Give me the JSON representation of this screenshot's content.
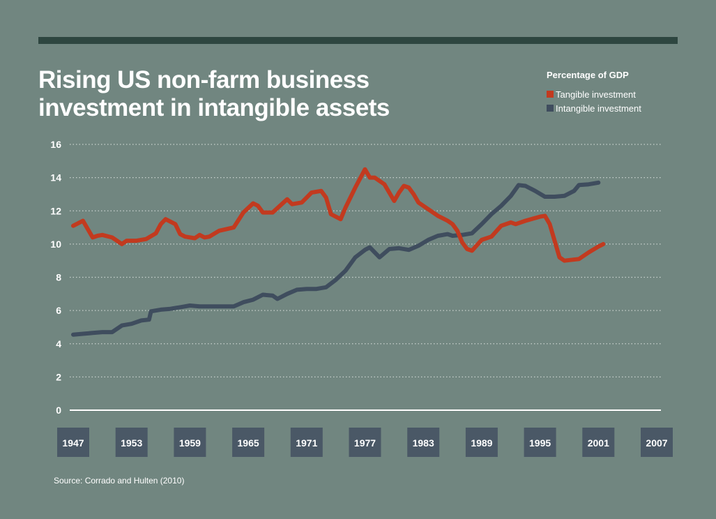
{
  "title": {
    "line1": "Rising US non-farm business",
    "line2": "investment in intangible assets"
  },
  "legend": {
    "title": "Percentage of GDP",
    "items": [
      {
        "label": "Tangible investment",
        "color": "#c23a1f"
      },
      {
        "label": "Intangible investment",
        "color": "#3f4d5e"
      }
    ]
  },
  "source": "Source: Corrado and Hulten (2010)",
  "colors": {
    "background": "#718680",
    "top_bar": "#2e4640",
    "year_box": "#4a5866",
    "grid": "#c9d2ce"
  },
  "chart_data": {
    "type": "line",
    "title": "Rising US non-farm business investment in intangible assets",
    "ylabel": "Percentage of GDP",
    "xlabel": "",
    "xlim": [
      1947,
      2007
    ],
    "ylim": [
      0,
      16
    ],
    "yticks": [
      0,
      2,
      4,
      6,
      8,
      10,
      12,
      14,
      16
    ],
    "xticks": [
      1947,
      1953,
      1959,
      1965,
      1971,
      1977,
      1983,
      1989,
      1995,
      2001,
      2007
    ],
    "grid": "horizontal dotted",
    "legend_position": "top-right",
    "series": [
      {
        "name": "Tangible investment",
        "color": "#c23a1f",
        "points": [
          [
            1947,
            11.1
          ],
          [
            1948,
            11.4
          ],
          [
            1948.5,
            10.9
          ],
          [
            1949,
            10.4
          ],
          [
            1949.5,
            10.5
          ],
          [
            1950,
            10.55
          ],
          [
            1951,
            10.4
          ],
          [
            1952,
            10.0
          ],
          [
            1952.5,
            10.2
          ],
          [
            1953.5,
            10.2
          ],
          [
            1954.5,
            10.3
          ],
          [
            1955.5,
            10.65
          ],
          [
            1956,
            11.2
          ],
          [
            1956.5,
            11.5
          ],
          [
            1957.5,
            11.2
          ],
          [
            1958,
            10.6
          ],
          [
            1958.5,
            10.45
          ],
          [
            1959.5,
            10.35
          ],
          [
            1960,
            10.55
          ],
          [
            1960.5,
            10.4
          ],
          [
            1961,
            10.45
          ],
          [
            1962,
            10.8
          ],
          [
            1963.5,
            11.0
          ],
          [
            1964.5,
            11.9
          ],
          [
            1965.5,
            12.45
          ],
          [
            1966,
            12.3
          ],
          [
            1966.5,
            11.9
          ],
          [
            1967.5,
            11.9
          ],
          [
            1969,
            12.7
          ],
          [
            1969.5,
            12.4
          ],
          [
            1970.5,
            12.5
          ],
          [
            1971.5,
            13.1
          ],
          [
            1972.5,
            13.2
          ],
          [
            1973,
            12.8
          ],
          [
            1973.5,
            11.8
          ],
          [
            1974.5,
            11.5
          ],
          [
            1975,
            12.2
          ],
          [
            1976,
            13.4
          ],
          [
            1977,
            14.5
          ],
          [
            1977.5,
            14.0
          ],
          [
            1978,
            14.0
          ],
          [
            1979,
            13.6
          ],
          [
            1979.5,
            13.1
          ],
          [
            1980,
            12.6
          ],
          [
            1980.5,
            13.1
          ],
          [
            1981,
            13.5
          ],
          [
            1981.5,
            13.4
          ],
          [
            1982,
            13.0
          ],
          [
            1982.5,
            12.5
          ],
          [
            1983.5,
            12.1
          ],
          [
            1984.5,
            11.7
          ],
          [
            1985.5,
            11.4
          ],
          [
            1986,
            11.2
          ],
          [
            1986.5,
            10.8
          ],
          [
            1987,
            10.1
          ],
          [
            1987.5,
            9.7
          ],
          [
            1988,
            9.6
          ],
          [
            1989,
            10.25
          ],
          [
            1990,
            10.45
          ],
          [
            1991,
            11.1
          ],
          [
            1992,
            11.3
          ],
          [
            1992.5,
            11.2
          ],
          [
            1993.5,
            11.4
          ],
          [
            1995,
            11.65
          ],
          [
            1995.5,
            11.7
          ],
          [
            1996,
            11.2
          ],
          [
            1996.5,
            10.2
          ],
          [
            1997,
            9.2
          ],
          [
            1997.5,
            9.0
          ],
          [
            1999,
            9.1
          ],
          [
            2000,
            9.5
          ],
          [
            2001,
            9.85
          ],
          [
            2001.5,
            10.0
          ]
        ]
      },
      {
        "name": "Intangible investment",
        "color": "#3f4d5e",
        "points": [
          [
            1947,
            4.55
          ],
          [
            1948,
            4.6
          ],
          [
            1949,
            4.65
          ],
          [
            1950,
            4.7
          ],
          [
            1951,
            4.7
          ],
          [
            1952,
            5.1
          ],
          [
            1953,
            5.2
          ],
          [
            1954,
            5.4
          ],
          [
            1954.8,
            5.45
          ],
          [
            1955,
            5.95
          ],
          [
            1956,
            6.05
          ],
          [
            1957,
            6.1
          ],
          [
            1958,
            6.2
          ],
          [
            1959,
            6.3
          ],
          [
            1960,
            6.25
          ],
          [
            1961,
            6.25
          ],
          [
            1962,
            6.25
          ],
          [
            1963,
            6.25
          ],
          [
            1963.5,
            6.25
          ],
          [
            1964.5,
            6.5
          ],
          [
            1965.5,
            6.65
          ],
          [
            1966.5,
            6.95
          ],
          [
            1967.5,
            6.9
          ],
          [
            1968,
            6.7
          ],
          [
            1969,
            7.0
          ],
          [
            1970,
            7.25
          ],
          [
            1971,
            7.3
          ],
          [
            1972,
            7.3
          ],
          [
            1973,
            7.4
          ],
          [
            1974,
            7.85
          ],
          [
            1975,
            8.4
          ],
          [
            1976,
            9.2
          ],
          [
            1977,
            9.65
          ],
          [
            1977.5,
            9.8
          ],
          [
            1978.5,
            9.2
          ],
          [
            1979.5,
            9.7
          ],
          [
            1980.5,
            9.75
          ],
          [
            1981.5,
            9.65
          ],
          [
            1982.5,
            9.9
          ],
          [
            1983.5,
            10.25
          ],
          [
            1984.5,
            10.5
          ],
          [
            1985.5,
            10.6
          ],
          [
            1986,
            10.5
          ],
          [
            1987,
            10.55
          ],
          [
            1988,
            10.65
          ],
          [
            1989,
            11.2
          ],
          [
            1990,
            11.8
          ],
          [
            1991,
            12.3
          ],
          [
            1992,
            12.9
          ],
          [
            1992.8,
            13.55
          ],
          [
            1993.5,
            13.5
          ],
          [
            1994.5,
            13.2
          ],
          [
            1995.5,
            12.85
          ],
          [
            1996.5,
            12.85
          ],
          [
            1997.5,
            12.9
          ],
          [
            1998.5,
            13.2
          ],
          [
            1999,
            13.55
          ],
          [
            2000,
            13.6
          ],
          [
            2001,
            13.7
          ]
        ]
      }
    ]
  }
}
